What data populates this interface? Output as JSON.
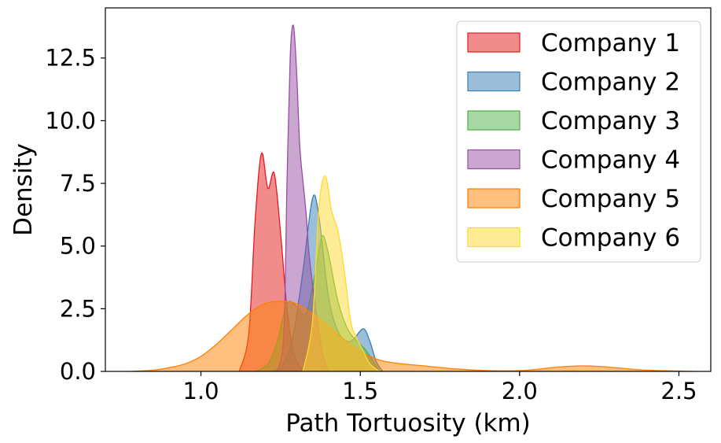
{
  "chart_data": {
    "type": "area",
    "title": "",
    "xlabel": "Path Tortuosity (km)",
    "ylabel": "Density",
    "xlim": [
      0.7,
      2.6
    ],
    "ylim": [
      0,
      14.5
    ],
    "xticks": [
      1.0,
      1.5,
      2.0,
      2.5
    ],
    "xtick_labels": [
      "1.0",
      "1.5",
      "2.0",
      "2.5"
    ],
    "yticks": [
      0.0,
      2.5,
      5.0,
      7.5,
      10.0,
      12.5
    ],
    "ytick_labels": [
      "0.0",
      "2.5",
      "5.0",
      "7.5",
      "10.0",
      "12.5"
    ],
    "legend_position": "top-right",
    "series": [
      {
        "name": "Company 1",
        "color": "#e41a1c",
        "x": [
          1.12,
          1.15,
          1.17,
          1.19,
          1.21,
          1.23,
          1.25,
          1.27,
          1.29,
          1.31,
          1.33
        ],
        "y": [
          0.0,
          1.5,
          6.0,
          8.7,
          7.3,
          7.9,
          5.5,
          2.5,
          0.8,
          0.2,
          0.0
        ]
      },
      {
        "name": "Company 2",
        "color": "#377eb8",
        "x": [
          1.22,
          1.26,
          1.29,
          1.32,
          1.35,
          1.37,
          1.4,
          1.43,
          1.46,
          1.48,
          1.51,
          1.53,
          1.55,
          1.57
        ],
        "y": [
          0.0,
          0.3,
          1.5,
          4.0,
          6.9,
          6.2,
          3.0,
          1.6,
          1.2,
          1.3,
          1.7,
          1.2,
          0.4,
          0.0
        ]
      },
      {
        "name": "Company 3",
        "color": "#4daf4a",
        "x": [
          1.17,
          1.21,
          1.24,
          1.27,
          1.3,
          1.33,
          1.36,
          1.38,
          1.4,
          1.43,
          1.46,
          1.49,
          1.52,
          1.56
        ],
        "y": [
          0.0,
          0.3,
          1.2,
          2.7,
          2.6,
          2.3,
          4.0,
          5.4,
          4.7,
          2.8,
          1.7,
          1.2,
          0.8,
          0.0
        ]
      },
      {
        "name": "Company 4",
        "color": "#984ea3",
        "x": [
          1.24,
          1.26,
          1.27,
          1.28,
          1.29,
          1.3,
          1.31,
          1.32,
          1.33,
          1.34,
          1.36,
          1.38,
          1.4
        ],
        "y": [
          0.0,
          1.5,
          7.5,
          12.5,
          13.8,
          12.0,
          9.0,
          7.6,
          6.3,
          4.6,
          2.5,
          0.8,
          0.0
        ]
      },
      {
        "name": "Company 5",
        "color": "#ff7f00",
        "x": [
          0.78,
          0.85,
          0.9,
          0.95,
          1.0,
          1.05,
          1.1,
          1.15,
          1.2,
          1.25,
          1.3,
          1.35,
          1.4,
          1.45,
          1.5,
          1.55,
          1.6,
          1.7,
          1.8,
          1.9,
          2.0,
          2.05,
          2.1,
          2.15,
          2.2,
          2.25,
          2.3,
          2.4,
          2.55
        ],
        "y": [
          0.0,
          0.05,
          0.15,
          0.3,
          0.6,
          1.1,
          1.7,
          2.3,
          2.7,
          2.8,
          2.7,
          2.3,
          1.8,
          1.25,
          0.8,
          0.5,
          0.35,
          0.22,
          0.1,
          0.03,
          0.03,
          0.08,
          0.15,
          0.2,
          0.22,
          0.2,
          0.15,
          0.05,
          0.0
        ]
      },
      {
        "name": "Company 6",
        "color": "#ffd92f",
        "x": [
          1.32,
          1.35,
          1.37,
          1.39,
          1.41,
          1.43,
          1.45,
          1.47,
          1.49,
          1.51,
          1.53,
          1.56
        ],
        "y": [
          0.0,
          2.0,
          6.5,
          7.8,
          6.4,
          5.6,
          4.0,
          2.0,
          1.3,
          0.8,
          0.3,
          0.0
        ]
      }
    ]
  }
}
